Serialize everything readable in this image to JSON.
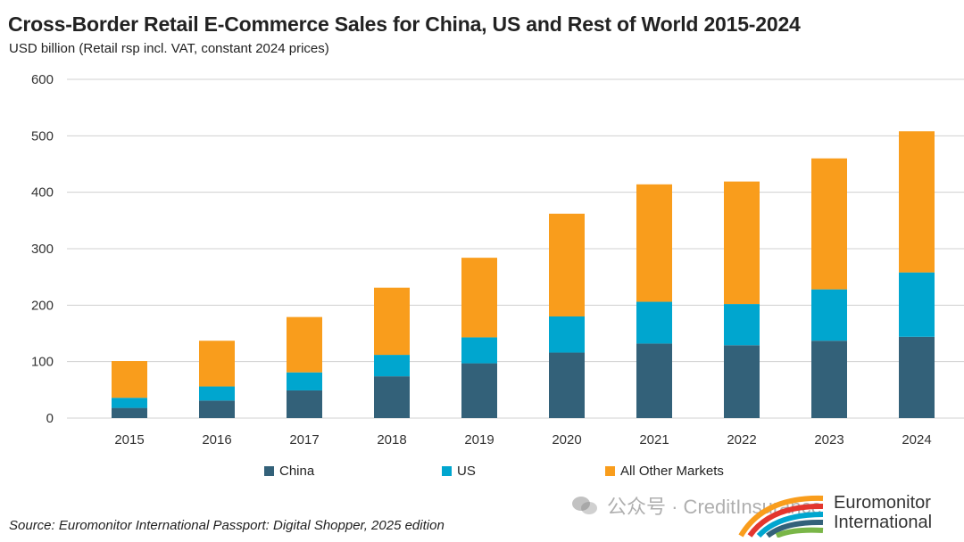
{
  "title": "Cross-Border Retail E-Commerce Sales for China, US and Rest of World 2015-2024",
  "subtitle": "USD billion (Retail rsp incl. VAT,  constant 2024 prices)",
  "source": "Source: Euromonitor International Passport: Digital Shopper, 2025 edition",
  "watermark": "公众号 · CreditInsurance",
  "logo": {
    "line1": "Euromonitor",
    "line2": "International"
  },
  "chart_data": {
    "type": "bar",
    "stacked": true,
    "categories": [
      "2015",
      "2016",
      "2017",
      "2018",
      "2019",
      "2020",
      "2021",
      "2022",
      "2023",
      "2024"
    ],
    "series": [
      {
        "name": "China",
        "color": "#336179",
        "values": [
          18,
          31,
          49,
          74,
          97,
          116,
          132,
          129,
          137,
          144
        ]
      },
      {
        "name": "US",
        "color": "#00A6CF",
        "values": [
          18,
          25,
          32,
          38,
          46,
          64,
          74,
          73,
          91,
          114
        ]
      },
      {
        "name": "All Other Markets",
        "color": "#F99D1C",
        "values": [
          65,
          81,
          98,
          119,
          141,
          182,
          208,
          217,
          232,
          250
        ]
      }
    ],
    "ylim": [
      0,
      600
    ],
    "yticks": [
      "0",
      "100",
      "200",
      "300",
      "400",
      "500",
      "600"
    ],
    "grid": true,
    "legend_position": "bottom"
  }
}
